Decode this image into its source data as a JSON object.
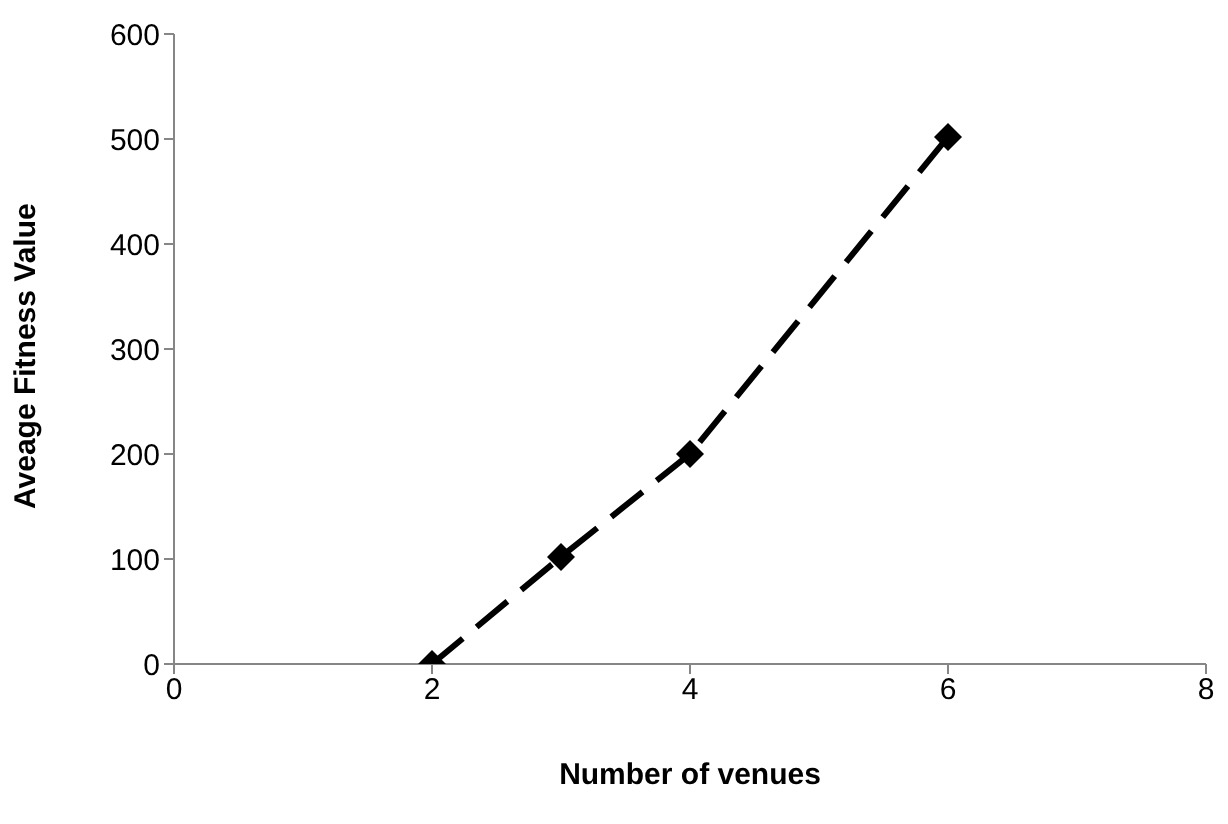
{
  "chart_data": {
    "type": "line",
    "xlabel": "Number of venues",
    "ylabel": "Aveage Fitness Value",
    "x": [
      2,
      3,
      4,
      6
    ],
    "series": [
      {
        "color": "#000000",
        "values": [
          0,
          102,
          200,
          502
        ]
      }
    ],
    "xlim": [
      0,
      8
    ],
    "xticks": [
      0,
      2,
      4,
      6,
      8
    ],
    "ylim": [
      0,
      600
    ],
    "yticks": [
      0,
      100,
      200,
      300,
      400,
      500,
      600
    ],
    "grid": false,
    "legend": false,
    "marker": "diamond",
    "line_style": "dashed"
  }
}
